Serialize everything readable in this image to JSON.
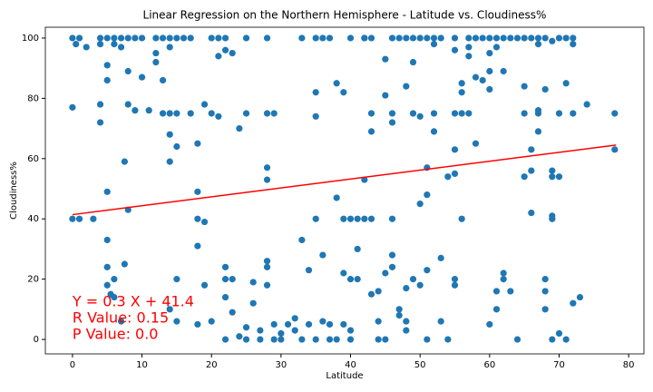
{
  "chart_data": {
    "type": "scatter",
    "title": "Linear Regression on the Northern Hemisphere - Latitude vs. Cloudiness%",
    "x_label": "Latitude",
    "y_label": "Cloudiness%",
    "xlim": [
      -3.9,
      82.2
    ],
    "ylim": [
      -4.8,
      103.6
    ],
    "xticks": [
      0,
      10,
      20,
      30,
      40,
      50,
      60,
      70,
      80
    ],
    "yticks": [
      0,
      20,
      40,
      60,
      80,
      100
    ],
    "color": "#1f77b4",
    "x": [
      0,
      1,
      4,
      5,
      6,
      7,
      8,
      9,
      10,
      12,
      13,
      14,
      15,
      16,
      17,
      20,
      21,
      22,
      25,
      33,
      35,
      36,
      37,
      40,
      42,
      43,
      46,
      47,
      48,
      49,
      50,
      51,
      52,
      53,
      55,
      57,
      58,
      59,
      60,
      61,
      62,
      63,
      64,
      65,
      66,
      67,
      68,
      70,
      71,
      72,
      0.5,
      2,
      4,
      6,
      7,
      14,
      52,
      57,
      61,
      67,
      69,
      72,
      0,
      0,
      1,
      3,
      4,
      4,
      5,
      5,
      5,
      5,
      5,
      5,
      5.5,
      6,
      6,
      7,
      7.5,
      7.5,
      8,
      8,
      8,
      9,
      10,
      11,
      12,
      12,
      13,
      13,
      14,
      14,
      14,
      14,
      15,
      15,
      15,
      15,
      17,
      18,
      18,
      18,
      18,
      18,
      19,
      19,
      19,
      20,
      20,
      21,
      21,
      22,
      22,
      22,
      22,
      22,
      23,
      23,
      23,
      24,
      24,
      25,
      25,
      25,
      26,
      26,
      27,
      27,
      28,
      28,
      28,
      28,
      28,
      28,
      28,
      29,
      29,
      29,
      30,
      30,
      31,
      32,
      32,
      33,
      33,
      34,
      34,
      35,
      35,
      35,
      35,
      36,
      36,
      37,
      37,
      38,
      38,
      38,
      39,
      39,
      39,
      39,
      40,
      40,
      40,
      40,
      41,
      41,
      41,
      42,
      42,
      42,
      43,
      43,
      43,
      43,
      44,
      44,
      44,
      45,
      45,
      45,
      45,
      46,
      46,
      46,
      46,
      46,
      47,
      47,
      48,
      48,
      48,
      48,
      49,
      49,
      49,
      50,
      50,
      50,
      51,
      51,
      51,
      51,
      52,
      52,
      53,
      53,
      54,
      54,
      55,
      55,
      55,
      55,
      55,
      55,
      56,
      56,
      56,
      56,
      57,
      57,
      58,
      58,
      59,
      60,
      60,
      60,
      60,
      61,
      61,
      62,
      62,
      62,
      63,
      64,
      65,
      65,
      65,
      66,
      66,
      66,
      67,
      67,
      67,
      68,
      68,
      68,
      68,
      69,
      69,
      69,
      69,
      69,
      70,
      70,
      70,
      71,
      71,
      72,
      72,
      73,
      74,
      78,
      78
    ],
    "values": [
      100,
      100,
      100,
      100,
      100,
      100,
      100,
      100,
      100,
      100,
      100,
      100,
      100,
      100,
      100,
      100,
      100,
      100,
      100,
      100,
      100,
      100,
      100,
      100,
      100,
      100,
      100,
      100,
      100,
      100,
      100,
      100,
      100,
      100,
      100,
      100,
      100,
      100,
      100,
      100,
      100,
      100,
      100,
      100,
      100,
      100,
      100,
      100,
      100,
      100,
      98,
      97,
      98,
      98,
      97,
      97,
      98,
      97,
      97,
      98,
      99,
      98,
      77,
      40,
      40,
      40,
      72,
      78,
      91,
      86,
      49,
      33,
      24,
      18,
      15,
      14,
      20,
      6,
      25,
      59,
      89,
      43,
      78,
      76,
      87,
      76,
      92,
      95,
      86,
      75,
      75,
      68,
      59,
      10,
      64,
      20,
      6,
      75,
      75,
      65,
      49,
      40,
      31,
      5,
      78,
      39,
      18,
      75,
      6,
      94,
      74,
      96,
      14,
      24,
      20,
      0,
      9,
      20,
      95,
      70,
      1,
      75,
      0,
      4,
      12,
      19,
      0,
      3,
      26,
      24,
      18,
      57,
      53,
      75,
      100,
      75,
      5,
      0,
      0,
      2,
      5,
      7,
      3,
      33,
      0,
      23,
      5,
      40,
      0,
      74,
      82,
      28,
      6,
      5,
      0,
      47,
      85,
      0,
      40,
      82,
      22,
      5,
      40,
      3,
      20,
      0,
      30,
      20,
      40,
      53,
      40,
      100,
      69,
      75,
      15,
      40,
      16,
      6,
      0,
      93,
      81,
      22,
      0,
      75,
      72,
      40,
      28,
      24,
      10,
      8,
      17,
      84,
      6,
      3,
      92,
      75,
      20,
      45,
      18,
      74,
      57,
      48,
      23,
      0,
      75,
      69,
      27,
      6,
      54,
      0,
      96,
      75,
      63,
      55,
      18,
      20,
      85,
      82,
      75,
      40,
      94,
      75,
      87,
      65,
      86,
      95,
      89,
      83,
      5,
      16,
      10,
      89,
      22,
      20,
      16,
      0,
      84,
      75,
      54,
      63,
      56,
      42,
      75,
      69,
      76,
      10,
      16,
      83,
      20,
      41,
      40,
      56,
      54,
      0,
      2,
      54,
      75,
      85,
      0,
      12,
      75,
      14,
      78,
      63,
      75
    ],
    "regression": {
      "color": "#ff0000",
      "x": [
        0,
        78.2
      ],
      "values": [
        41.4,
        64.5
      ]
    },
    "annotations": [
      "Y = 0.3 X + 41.4",
      "R Value: 0.15",
      "P Value: 0.0"
    ]
  }
}
